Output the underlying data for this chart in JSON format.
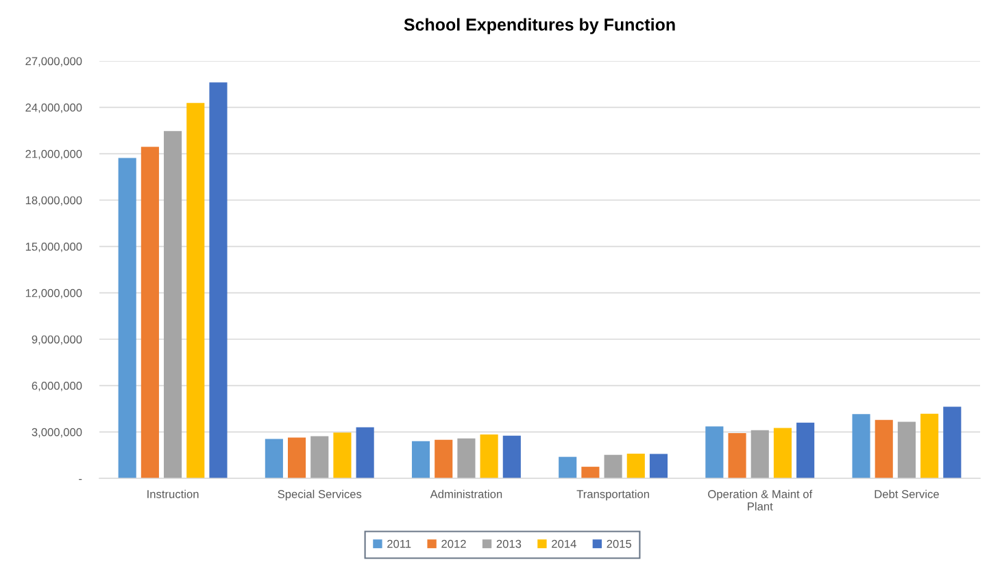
{
  "chart_data": {
    "type": "bar",
    "title": "School Expenditures by Function",
    "categories": [
      "Instruction",
      "Special Services",
      "Administration",
      "Transportation",
      "Operation & Maint of Plant",
      "Debt Service"
    ],
    "series": [
      {
        "name": "2011",
        "color": "#5b9bd5",
        "values": [
          20730000,
          2550000,
          2400000,
          1390000,
          3360000,
          4160000
        ]
      },
      {
        "name": "2012",
        "color": "#ed7d31",
        "values": [
          21450000,
          2640000,
          2490000,
          750000,
          2930000,
          3780000
        ]
      },
      {
        "name": "2013",
        "color": "#a5a5a5",
        "values": [
          22470000,
          2730000,
          2580000,
          1520000,
          3120000,
          3660000
        ]
      },
      {
        "name": "2014",
        "color": "#ffc000",
        "values": [
          24280000,
          2960000,
          2840000,
          1600000,
          3260000,
          4180000
        ]
      },
      {
        "name": "2015",
        "color": "#4472c4",
        "values": [
          25620000,
          3300000,
          2760000,
          1580000,
          3600000,
          4630000
        ]
      }
    ],
    "ylim": [
      0,
      27000000
    ],
    "yticks": [
      {
        "value": 0,
        "label": "-"
      },
      {
        "value": 3000000,
        "label": "3,000,000"
      },
      {
        "value": 6000000,
        "label": "6,000,000"
      },
      {
        "value": 9000000,
        "label": "9,000,000"
      },
      {
        "value": 12000000,
        "label": "12,000,000"
      },
      {
        "value": 15000000,
        "label": "15,000,000"
      },
      {
        "value": 18000000,
        "label": "18,000,000"
      },
      {
        "value": 21000000,
        "label": "21,000,000"
      },
      {
        "value": 24000000,
        "label": "24,000,000"
      },
      {
        "value": 27000000,
        "label": "27,000,000"
      }
    ],
    "grid": "y",
    "legend": "bottom"
  }
}
